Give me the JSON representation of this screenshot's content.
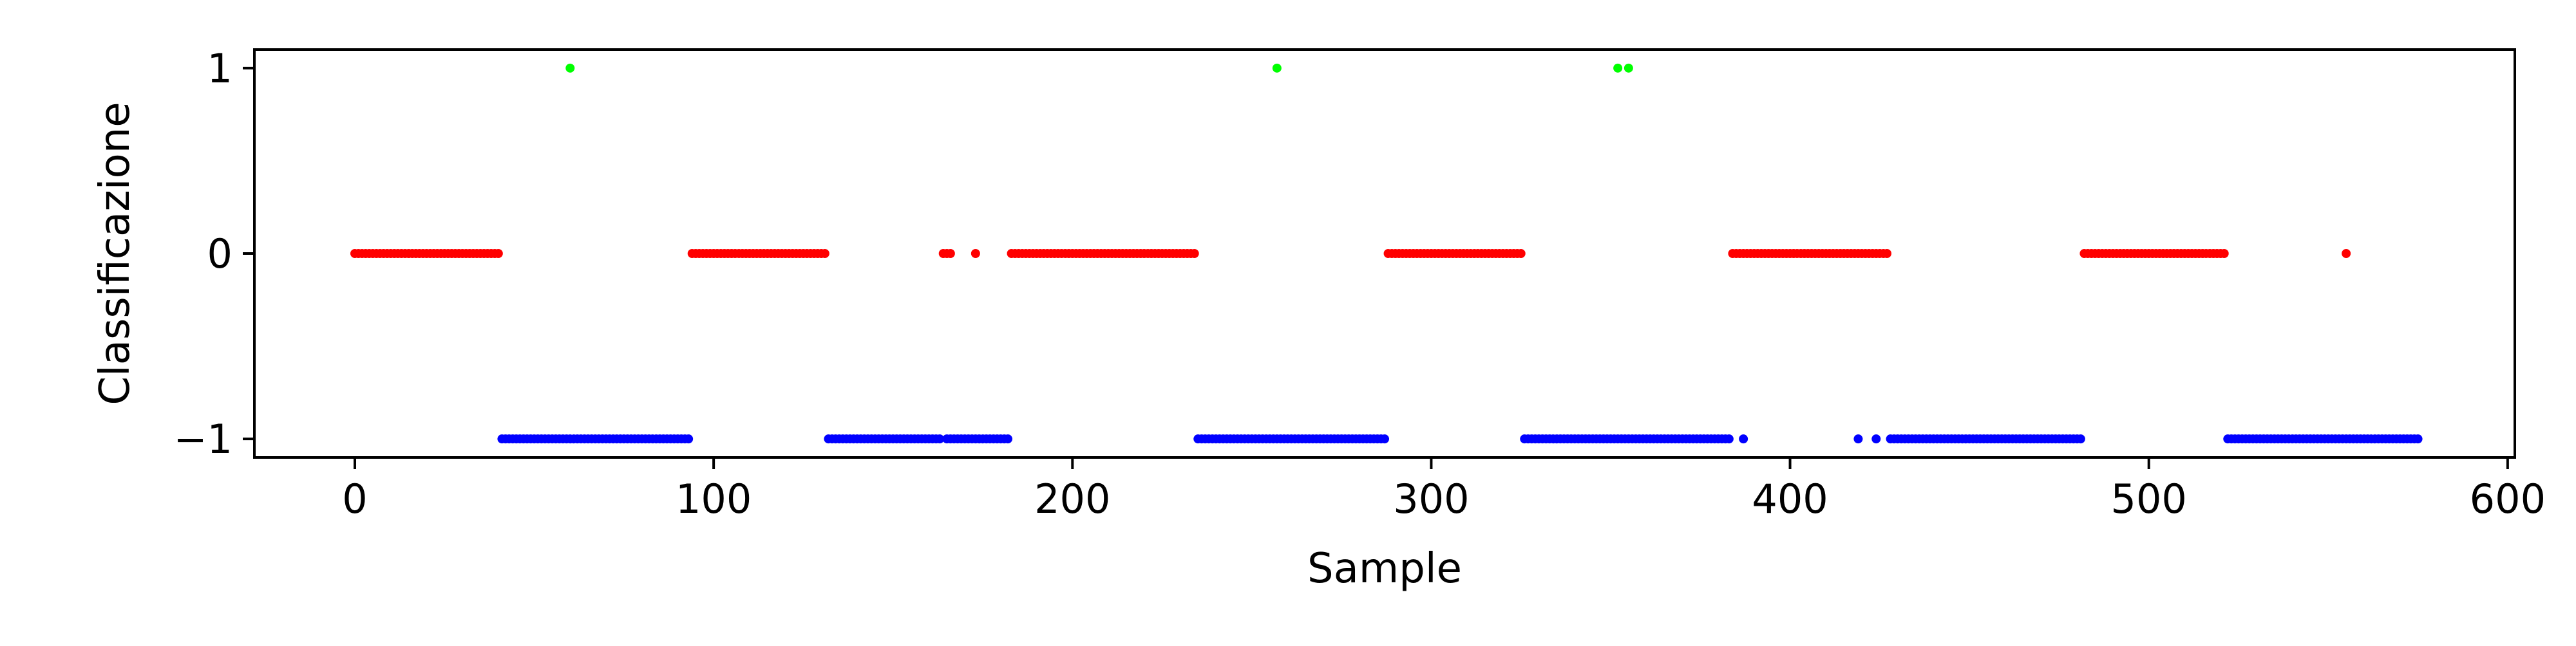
{
  "chart_data": {
    "type": "scatter",
    "title": "",
    "xlabel": "Sample",
    "ylabel": "Classificazione",
    "xlim": [
      -28,
      602
    ],
    "ylim": [
      -1.1,
      1.1
    ],
    "x_ticks": [
      0,
      100,
      200,
      300,
      400,
      500,
      600
    ],
    "y_ticks": [
      -1,
      0,
      1
    ],
    "x_tick_labels": [
      "0",
      "100",
      "200",
      "300",
      "400",
      "500",
      "600"
    ],
    "y_tick_labels": [
      "−1",
      "0",
      "1"
    ],
    "grid": false,
    "legend": "none",
    "series": [
      {
        "y": 0,
        "color": "#ff0000",
        "ranges": [
          [
            0,
            40
          ],
          [
            94,
            131
          ],
          [
            183,
            234
          ],
          [
            288,
            325
          ],
          [
            384,
            427
          ],
          [
            482,
            521
          ]
        ],
        "points": [
          164,
          165,
          166,
          173,
          555
        ]
      },
      {
        "y": -1,
        "color": "#0000ff",
        "ranges": [
          [
            41,
            93
          ],
          [
            132,
            163
          ],
          [
            165,
            182
          ],
          [
            235,
            287
          ],
          [
            326,
            383
          ],
          [
            428,
            481
          ],
          [
            522,
            575
          ]
        ],
        "points": [
          387,
          419,
          424
        ]
      },
      {
        "y": 1,
        "color": "#00ff00",
        "ranges": [],
        "points": [
          60,
          257,
          352,
          355
        ]
      }
    ]
  }
}
